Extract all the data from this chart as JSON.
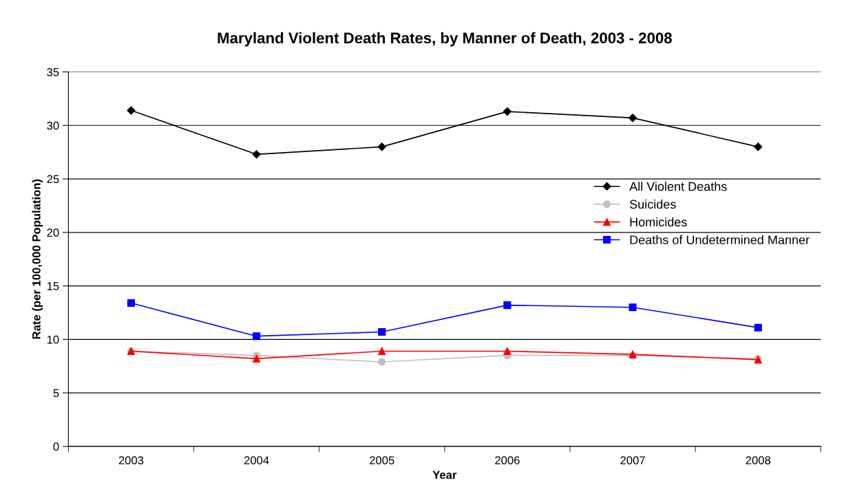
{
  "chart_data": {
    "type": "line",
    "title": "Maryland Violent Death Rates, by Manner of Death, 2003 - 2008",
    "xlabel": "Year",
    "ylabel": "Rate (per 100,000 Population)",
    "categories": [
      "2003",
      "2004",
      "2005",
      "2006",
      "2007",
      "2008"
    ],
    "series": [
      {
        "name": "All Violent Deaths",
        "color": "#000000",
        "marker": "diamond",
        "values": [
          31.4,
          27.3,
          28.0,
          31.3,
          30.7,
          28.0
        ]
      },
      {
        "name": "Suicides",
        "color": "#c0c0c0",
        "marker": "circle",
        "values": [
          8.9,
          8.5,
          7.9,
          8.5,
          8.5,
          8.2
        ]
      },
      {
        "name": "Homicides",
        "color": "#ff0000",
        "marker": "triangle",
        "values": [
          8.9,
          8.2,
          8.9,
          8.9,
          8.6,
          8.1
        ]
      },
      {
        "name": "Deaths of Undetermined Manner",
        "color": "#0000ff",
        "marker": "square",
        "values": [
          13.4,
          10.3,
          10.7,
          13.2,
          13.0,
          11.1
        ]
      }
    ],
    "ylim": [
      0,
      35
    ],
    "yticks": [
      0,
      5,
      10,
      15,
      20,
      25,
      30,
      35
    ],
    "grid": "y",
    "legend": "right",
    "line_style": "solid"
  }
}
